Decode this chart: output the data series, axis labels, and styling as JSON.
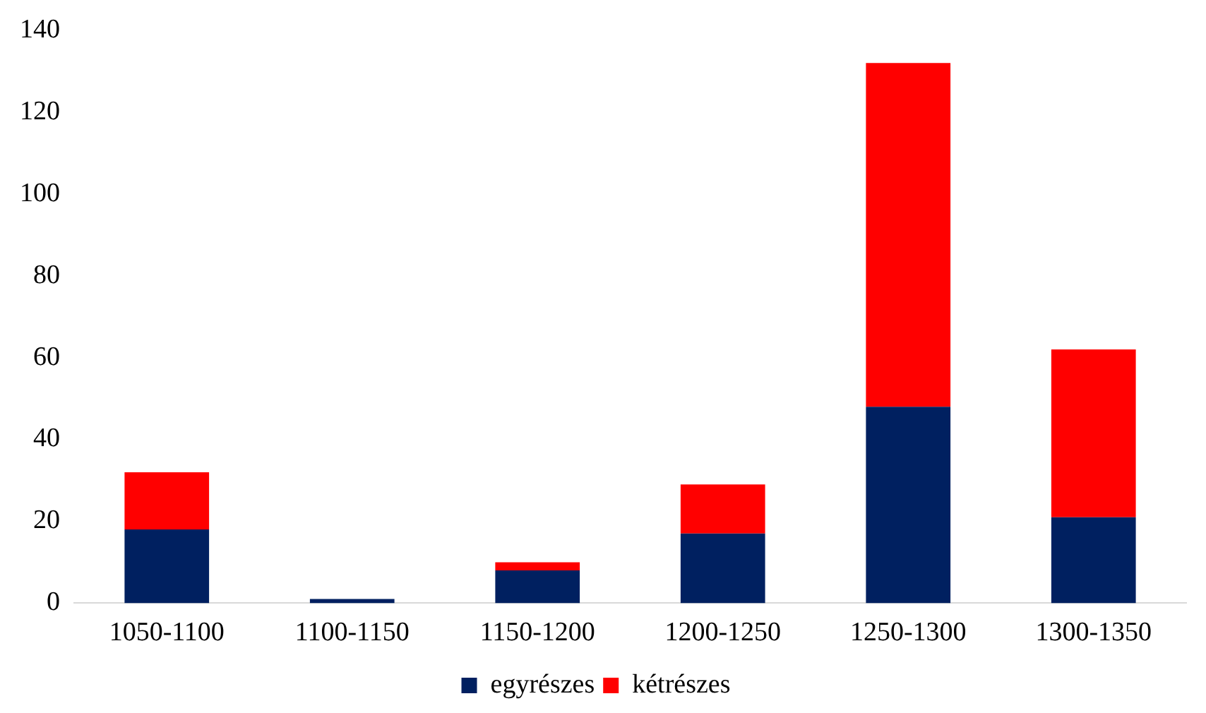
{
  "chart_data": {
    "type": "bar",
    "stacked": true,
    "categories": [
      "1050-1100",
      "1100-1150",
      "1150-1200",
      "1200-1250",
      "1250-1300",
      "1300-1350"
    ],
    "series": [
      {
        "name": "egyrészes",
        "color": "#002060",
        "values": [
          18,
          1,
          8,
          17,
          48,
          21
        ]
      },
      {
        "name": "kétrészes",
        "color": "#ff0000",
        "values": [
          14,
          0,
          2,
          12,
          84,
          41
        ]
      }
    ],
    "ylim": [
      0,
      140
    ],
    "yticks": [
      0,
      20,
      40,
      60,
      80,
      100,
      120,
      140
    ],
    "grid": false,
    "legend": "bottom"
  }
}
